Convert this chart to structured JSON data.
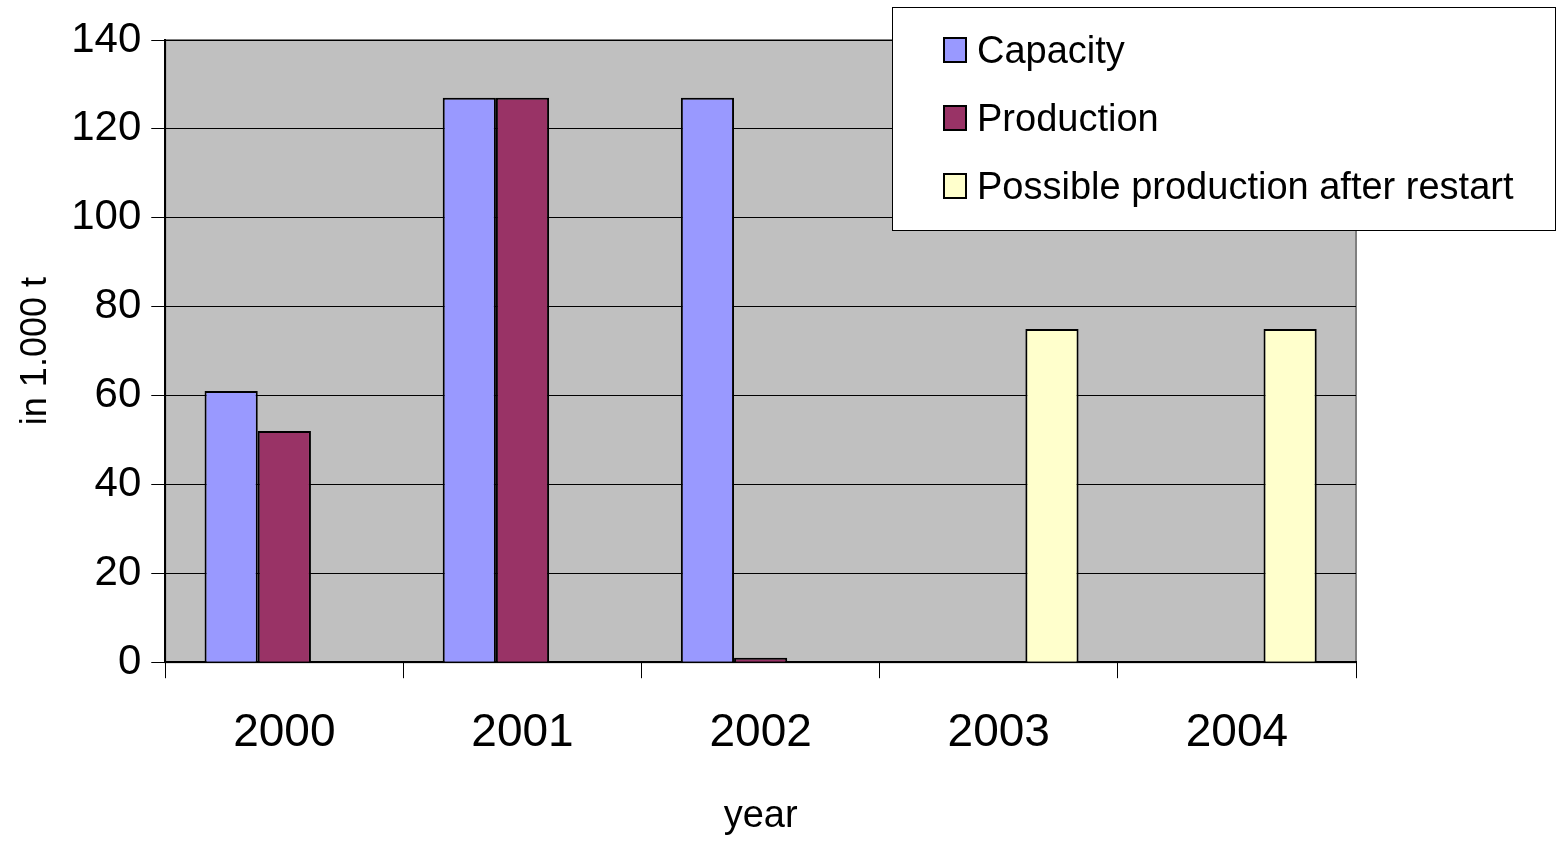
{
  "chart_data": {
    "type": "bar",
    "xlabel": "year",
    "ylabel": "in 1.000 t",
    "categories": [
      "2000",
      "2001",
      "2002",
      "2003",
      "2004"
    ],
    "series": [
      {
        "name": "Capacity",
        "color": "#9999ff",
        "values": [
          61,
          127,
          127,
          null,
          null
        ]
      },
      {
        "name": "Production",
        "color": "#993366",
        "values": [
          52,
          127,
          1,
          null,
          null
        ]
      },
      {
        "name": "Possible production after restart",
        "color": "#ffffcc",
        "values": [
          null,
          null,
          null,
          75,
          75
        ]
      }
    ],
    "ylim": [
      0,
      140
    ],
    "yticks": [
      0,
      20,
      40,
      60,
      80,
      100,
      120,
      140
    ],
    "grid": "y",
    "legend": "top right"
  }
}
